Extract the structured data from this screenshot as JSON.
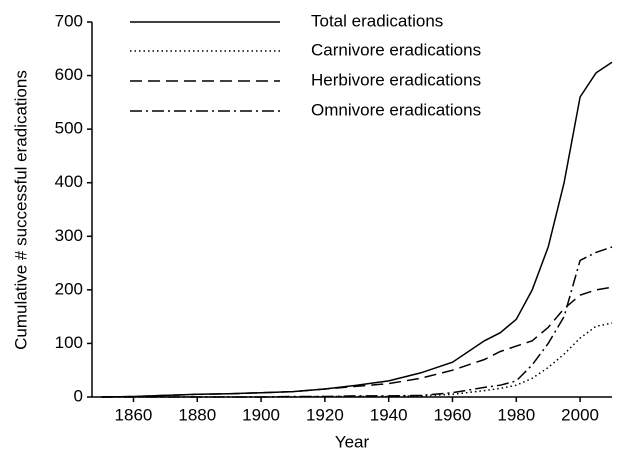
{
  "chart_data": {
    "type": "line",
    "xlabel": "Year",
    "ylabel": "Cumulative # successful eradications",
    "x": [
      1850,
      1860,
      1870,
      1880,
      1890,
      1900,
      1910,
      1920,
      1930,
      1940,
      1950,
      1960,
      1970,
      1975,
      1980,
      1985,
      1990,
      1995,
      2000,
      2005,
      2010
    ],
    "series": [
      {
        "name": "Total eradications",
        "color": "#000000",
        "dash": "solid",
        "values": [
          0,
          1,
          3,
          5,
          6,
          8,
          10,
          15,
          22,
          30,
          45,
          65,
          105,
          120,
          145,
          200,
          280,
          400,
          560,
          605,
          625
        ]
      },
      {
        "name": "Carnivore eradications",
        "color": "#000000",
        "dash": "dotted",
        "values": [
          0,
          0,
          0,
          0,
          0,
          0,
          0,
          1,
          1,
          1,
          2,
          5,
          12,
          16,
          22,
          35,
          55,
          80,
          110,
          132,
          138
        ]
      },
      {
        "name": "Herbivore eradications",
        "color": "#000000",
        "dash": "dashed",
        "values": [
          0,
          1,
          3,
          5,
          6,
          8,
          10,
          15,
          20,
          25,
          35,
          50,
          70,
          85,
          95,
          105,
          130,
          165,
          190,
          200,
          205
        ]
      },
      {
        "name": "Omnivore eradications",
        "color": "#000000",
        "dash": "dashdot",
        "values": [
          0,
          0,
          0,
          0,
          0,
          0,
          1,
          1,
          2,
          2,
          3,
          8,
          18,
          22,
          30,
          60,
          100,
          150,
          255,
          270,
          280
        ]
      }
    ],
    "xlim": [
      1847,
      2010
    ],
    "xticks": [
      1860,
      1880,
      1900,
      1920,
      1940,
      1960,
      1980,
      2000
    ],
    "ylim": [
      0,
      700
    ],
    "yticks": [
      0,
      100,
      200,
      300,
      400,
      500,
      600,
      700
    ],
    "grid": false,
    "legend": "upper left"
  }
}
